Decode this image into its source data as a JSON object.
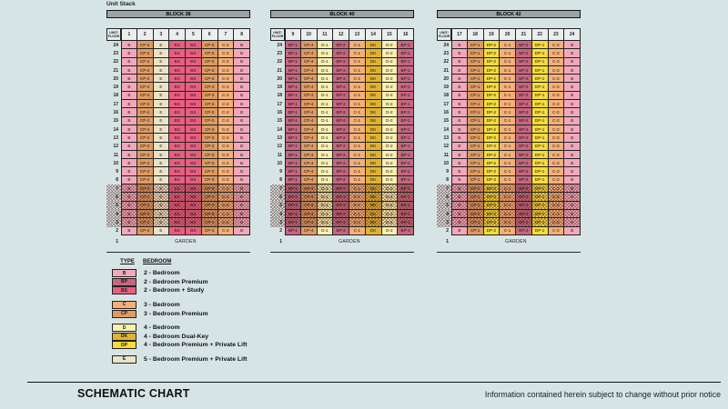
{
  "title": "Unit Stack",
  "colors": {
    "background": "#D7E4E6",
    "block_bar": "#9EA3A6",
    "header_cell": "#EBEEEE",
    "types": {
      "B": "#F1A8BB",
      "BP": "#C4677F",
      "BS": "#E85E80",
      "C": "#F4B078",
      "CP": "#DD9B63",
      "D": "#F8F0B0",
      "DK": "#DFB331",
      "DP": "#F4DC3D",
      "E": "#EBE3C6"
    }
  },
  "unit_floor_header": "UNIT/\nFLOOR",
  "floors": [
    24,
    23,
    22,
    21,
    20,
    19,
    18,
    17,
    16,
    15,
    14,
    13,
    12,
    11,
    10,
    9,
    8,
    7,
    6,
    5,
    4,
    3,
    2
  ],
  "hatched_floors": [
    7,
    6,
    5,
    4,
    3
  ],
  "garden": {
    "floor": "1",
    "label": "GARDEN"
  },
  "blocks": [
    {
      "name": "BLOCK 38",
      "columns": [
        "1",
        "2",
        "3",
        "4",
        "5",
        "6",
        "7",
        "8"
      ],
      "stacks": [
        "B",
        "CP-2",
        "E",
        "BS",
        "BS",
        "CP-3",
        "C-2",
        "B"
      ]
    },
    {
      "name": "BLOCK 40",
      "columns": [
        "9",
        "10",
        "11",
        "12",
        "13",
        "14",
        "15",
        "16"
      ],
      "stacks": [
        "BP-1",
        "CP-4",
        "D-1",
        "BP-2",
        "C-1",
        "DK",
        "D-2",
        "BP-1"
      ]
    },
    {
      "name": "BLOCK 42",
      "columns": [
        "17",
        "18",
        "19",
        "20",
        "21",
        "22",
        "23",
        "24"
      ],
      "stacks": [
        "B",
        "CP-1",
        "DP-2",
        "C-1",
        "BP-2",
        "DP-1",
        "C-3",
        "B"
      ]
    }
  ],
  "block_lefts": [
    117,
    297,
    480
  ],
  "legend": {
    "type_header": "TYPE",
    "bedroom_header": "BEDROOM",
    "groups": [
      [
        {
          "code": "B",
          "label": "2 - Bedroom"
        },
        {
          "code": "BP",
          "label": "2 - Bedroom Premium"
        },
        {
          "code": "BS",
          "label": "2 - Bedroom + Study"
        }
      ],
      [
        {
          "code": "C",
          "label": "3 - Bedroom"
        },
        {
          "code": "CP",
          "label": "3 - Bedroom Premium"
        }
      ],
      [
        {
          "code": "D",
          "label": "4 - Bedroom"
        },
        {
          "code": "DK",
          "label": "4 - Bedroom Dual-Key"
        },
        {
          "code": "DP",
          "label": "4 - Bedroom Premium + Private Lift"
        }
      ],
      [
        {
          "code": "E",
          "label": "5 - Bedroom Premium + Private Lift"
        }
      ]
    ]
  },
  "footer": {
    "title": "SCHEMATIC CHART",
    "note": "Information contained herein subject to change without prior notice"
  }
}
